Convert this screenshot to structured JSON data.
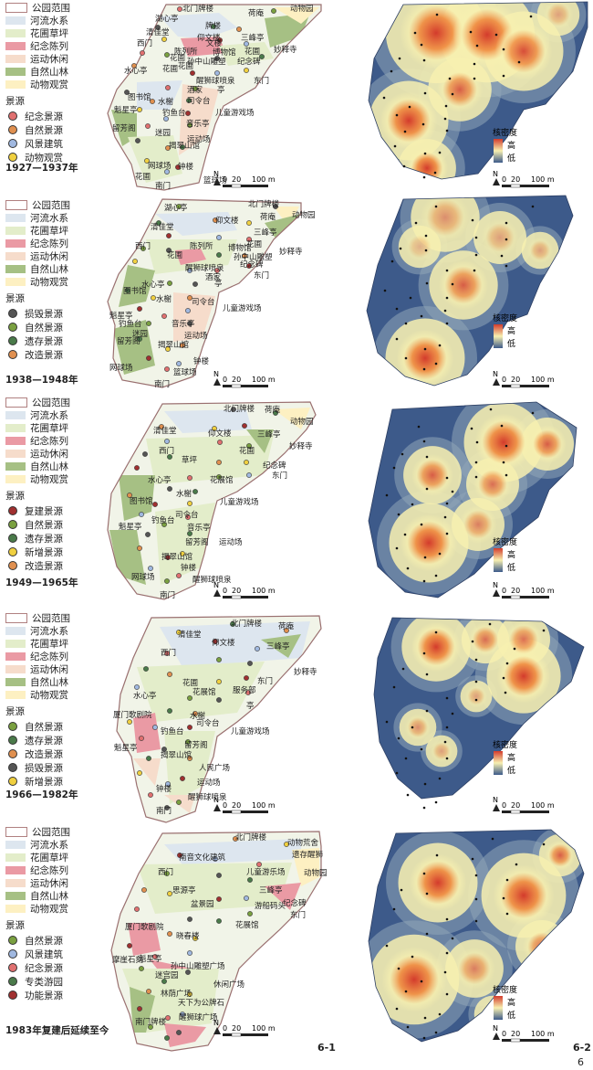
{
  "panels": [
    {
      "period": "1927—1937年",
      "legend": [
        "公园范围",
        "河流水系",
        "花圃草坪",
        "纪念陈列",
        "运动休闲",
        "自然山林",
        "动物观赏"
      ],
      "sources_title": "景源",
      "sources": [
        {
          "label": "纪念景源",
          "color": "#e07070"
        },
        {
          "label": "自然景源",
          "color": "#e09050"
        },
        {
          "label": "风景建筑",
          "color": "#a0b8e0"
        },
        {
          "label": "动物观赏",
          "color": "#f0d040"
        }
      ],
      "labels": [
        "北门牌楼",
        "荷庵",
        "动物园",
        "湖心亭",
        "牌楼",
        "清佳堂",
        "仰文楼",
        "三峰亭",
        "西门",
        "文楼",
        "陈列所",
        "博物馆",
        "花圃",
        "妙释寺",
        "水心亭",
        "花圃",
        "孙中山雕塑",
        "纪念碑",
        "花圃",
        "醒狮球喷泉",
        "东门",
        "花圃",
        "酒家",
        "亭",
        "图书馆",
        "水榭",
        "司令台",
        "魁星亭",
        "钓鱼台",
        "儿童游戏场",
        "留芳阁",
        "音乐亭",
        "迷园",
        "运动场",
        "揭翠山馆",
        "网球场",
        "钟楼",
        "花圃",
        "篮球场",
        "南门"
      ]
    },
    {
      "period": "1938—1948年",
      "legend": [
        "公园范围",
        "河流水系",
        "花圃草坪",
        "纪念陈列",
        "运动休闲",
        "自然山林",
        "动物观赏"
      ],
      "sources_title": "景源",
      "sources": [
        {
          "label": "损毁景源",
          "color": "#555555"
        },
        {
          "label": "自然景源",
          "color": "#7aa040"
        },
        {
          "label": "遗存景源",
          "color": "#4a7a4a"
        },
        {
          "label": "改造景源",
          "color": "#e09050"
        }
      ],
      "labels": [
        "湖心亭",
        "北门牌楼",
        "荷庵",
        "动物园",
        "清佳堂",
        "仰文楼",
        "三峰亭",
        "西门",
        "陈列所",
        "博物馆",
        "花圃",
        "妙释寺",
        "花圃",
        "孙中山雕塑",
        "纪念碑",
        "醒狮球喷泉",
        "东门",
        "酒家",
        "亭",
        "图书馆",
        "水心亭",
        "水榭",
        "司令台",
        "魁星亭",
        "儿童游戏场",
        "钓鱼台",
        "音乐亭",
        "迷园",
        "运动场",
        "留芳阁",
        "揭翠山馆",
        "钟楼",
        "网球场",
        "篮球场",
        "南门"
      ]
    },
    {
      "period": "1949—1965年",
      "legend": [
        "公园范围",
        "河流水系",
        "花圃草坪",
        "纪念陈列",
        "运动休闲",
        "自然山林",
        "动物观赏"
      ],
      "sources_title": "景源",
      "sources": [
        {
          "label": "复建景源",
          "color": "#a03030"
        },
        {
          "label": "自然景源",
          "color": "#7aa040"
        },
        {
          "label": "遗存景源",
          "color": "#4a7a4a"
        },
        {
          "label": "新增景源",
          "color": "#f0d040"
        },
        {
          "label": "改造景源",
          "color": "#e09050"
        }
      ],
      "labels": [
        "北门牌楼",
        "荷庵",
        "动物园",
        "清佳堂",
        "仰文楼",
        "三峰亭",
        "妙释寺",
        "西门",
        "花圃",
        "草坪",
        "纪念碑",
        "水心亭",
        "花展馆",
        "东门",
        "水榭",
        "图书馆",
        "儿童游戏场",
        "司令台",
        "魁星亭",
        "钓鱼台",
        "音乐亭",
        "留芳阁",
        "运动场",
        "揭翠山馆",
        "钟楼",
        "网球场",
        "醒狮球喷泉",
        "南门"
      ]
    },
    {
      "period": "1966—1982年",
      "legend": [
        "公园范围",
        "河流水系",
        "花圃草坪",
        "纪念陈列",
        "运动休闲",
        "自然山林",
        "动物观赏"
      ],
      "sources_title": "景源",
      "sources": [
        {
          "label": "自然景源",
          "color": "#7aa040"
        },
        {
          "label": "遗存景源",
          "color": "#4a7a4a"
        },
        {
          "label": "改造景源",
          "color": "#e09050"
        },
        {
          "label": "损毁景源",
          "color": "#555555"
        },
        {
          "label": "新增景源",
          "color": "#f0d040"
        }
      ],
      "labels": [
        "北门牌楼",
        "清佳堂",
        "荷庵",
        "仰文楼",
        "三峰亭",
        "妙释寺",
        "西门",
        "花圃",
        "东门",
        "水心亭",
        "花展馆",
        "服务部",
        "亭",
        "厦门歌剧院",
        "水榭",
        "钓鱼台",
        "司令台",
        "儿童游戏场",
        "魁星亭",
        "留芳阁",
        "揭翠山馆",
        "人民广场",
        "运动场",
        "钟楼",
        "醒狮球喷泉",
        "南门"
      ]
    },
    {
      "period": "1983年复建后延续至今",
      "legend": [
        "公园范围",
        "河流水系",
        "花圃草坪",
        "纪念陈列",
        "运动休闲",
        "自然山林",
        "动物观赏"
      ],
      "sources_title": "景源",
      "sources": [
        {
          "label": "自然景源",
          "color": "#7aa040"
        },
        {
          "label": "风景建筑",
          "color": "#a0b8e0"
        },
        {
          "label": "纪念景源",
          "color": "#e07070"
        },
        {
          "label": "专类游园",
          "color": "#4a7a4a"
        },
        {
          "label": "功能景源",
          "color": "#a03030"
        }
      ],
      "labels": [
        "北门牌楼",
        "动物荒舍",
        "南音文化建筑",
        "遗存醒狮",
        "西门",
        "儿童游乐场",
        "动物园",
        "三峰亭",
        "思源亭",
        "盆景园",
        "游船码头",
        "纪念碑",
        "东门",
        "厦门歌剧院",
        "花展馆",
        "晓春楼",
        "魁星亭",
        "孙中山雕塑广场",
        "摩崖石刻",
        "迷宫园",
        "休闲广场",
        "林荫广场",
        "天下为公牌石",
        "南门牌楼",
        "醒狮球广场"
      ]
    }
  ],
  "kde_legend": {
    "title": "核密度",
    "high": "高",
    "low": "低"
  },
  "scale": {
    "label_0": "0",
    "label_20": "20",
    "label_100": "100 m",
    "north": "N"
  },
  "figure_labels": {
    "left": "6-1",
    "right": "6-2"
  },
  "page_number": "6",
  "colors": {
    "park_outline": "#9a7070",
    "water": "#dde6ef",
    "lawn": "#e3edca",
    "memorial": "#ea9aa4",
    "sport": "#f6dccb",
    "forest": "#a6c084",
    "zoo": "#fdf0c2",
    "kde_high": "#d33b2c",
    "kde_mid": "#f7f0b0",
    "kde_low": "#3d5a8a"
  }
}
